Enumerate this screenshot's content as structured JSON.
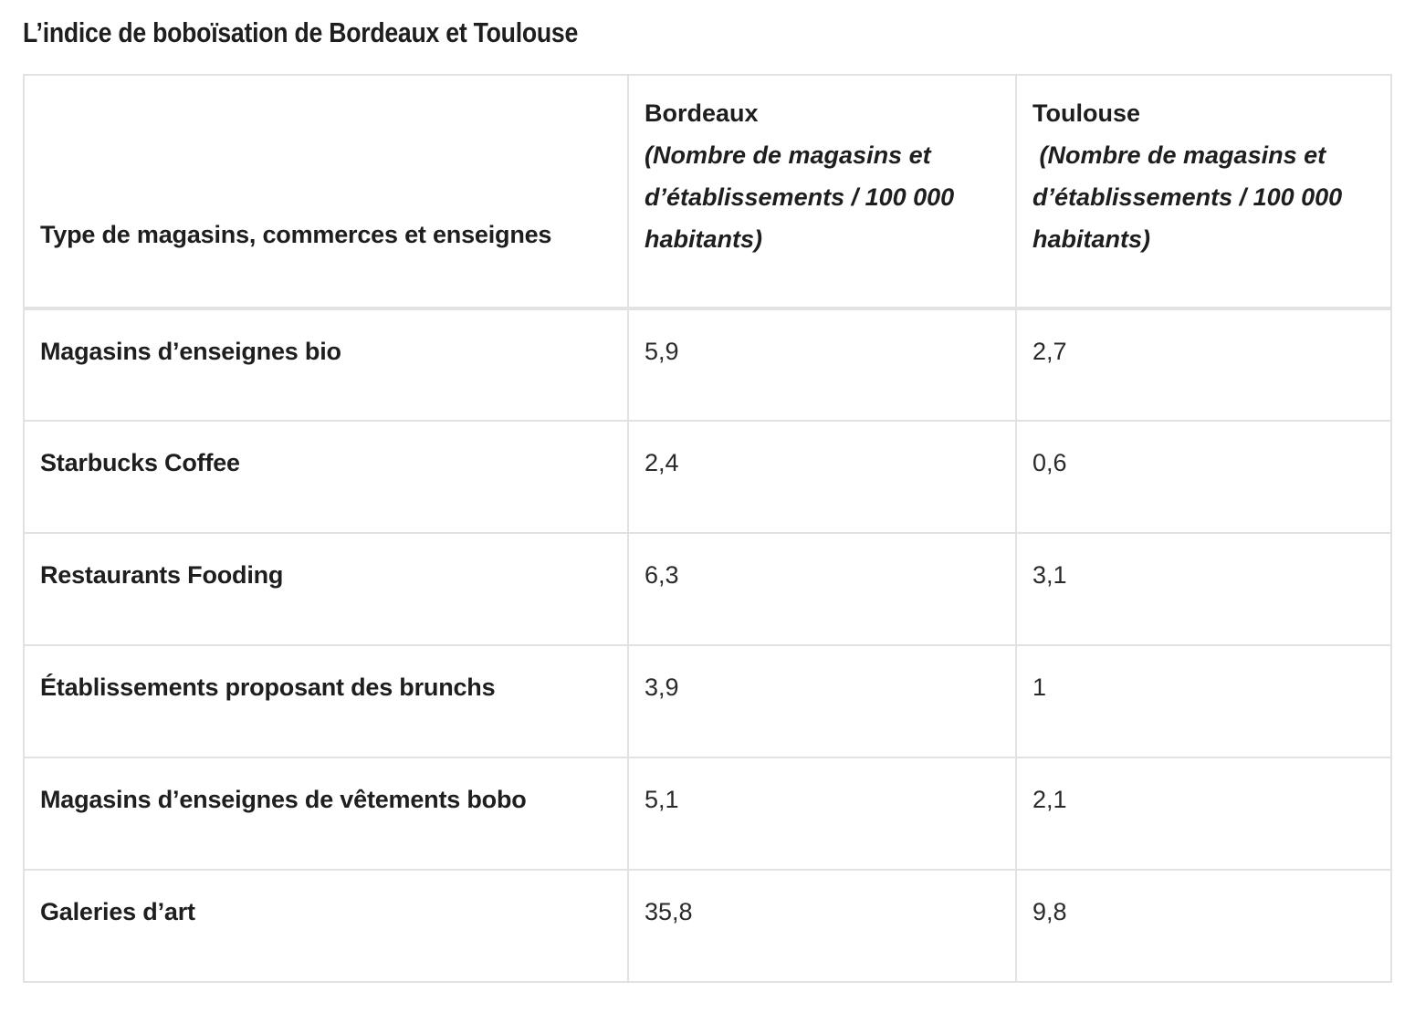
{
  "title": "L’indice de boboïsation de Bordeaux et Toulouse",
  "table": {
    "header": {
      "type_label": "Type de magasins, commerces et enseignes",
      "bordeaux": {
        "name": "Bordeaux",
        "sub": "(Nombre de magasins et d’établissements / 100 000 habitants)"
      },
      "toulouse": {
        "name": "Toulouse",
        "sub": " (Nombre de magasins et d’établissements / 100 000 habitants)"
      }
    },
    "rows": [
      {
        "label": "Magasins d’enseignes bio",
        "bordeaux": "5,9",
        "toulouse": "2,7"
      },
      {
        "label": "Starbucks Coffee",
        "bordeaux": "2,4",
        "toulouse": "0,6"
      },
      {
        "label": "Restaurants Fooding",
        "bordeaux": "6,3",
        "toulouse": "3,1"
      },
      {
        "label": "Établissements proposant des brunchs",
        "bordeaux": "3,9",
        "toulouse": "1"
      },
      {
        "label": "Magasins d’enseignes de vêtements bobo",
        "bordeaux": "5,1",
        "toulouse": "2,1"
      },
      {
        "label": "Galeries d’art",
        "bordeaux": "35,8",
        "toulouse": "9,8"
      }
    ]
  }
}
